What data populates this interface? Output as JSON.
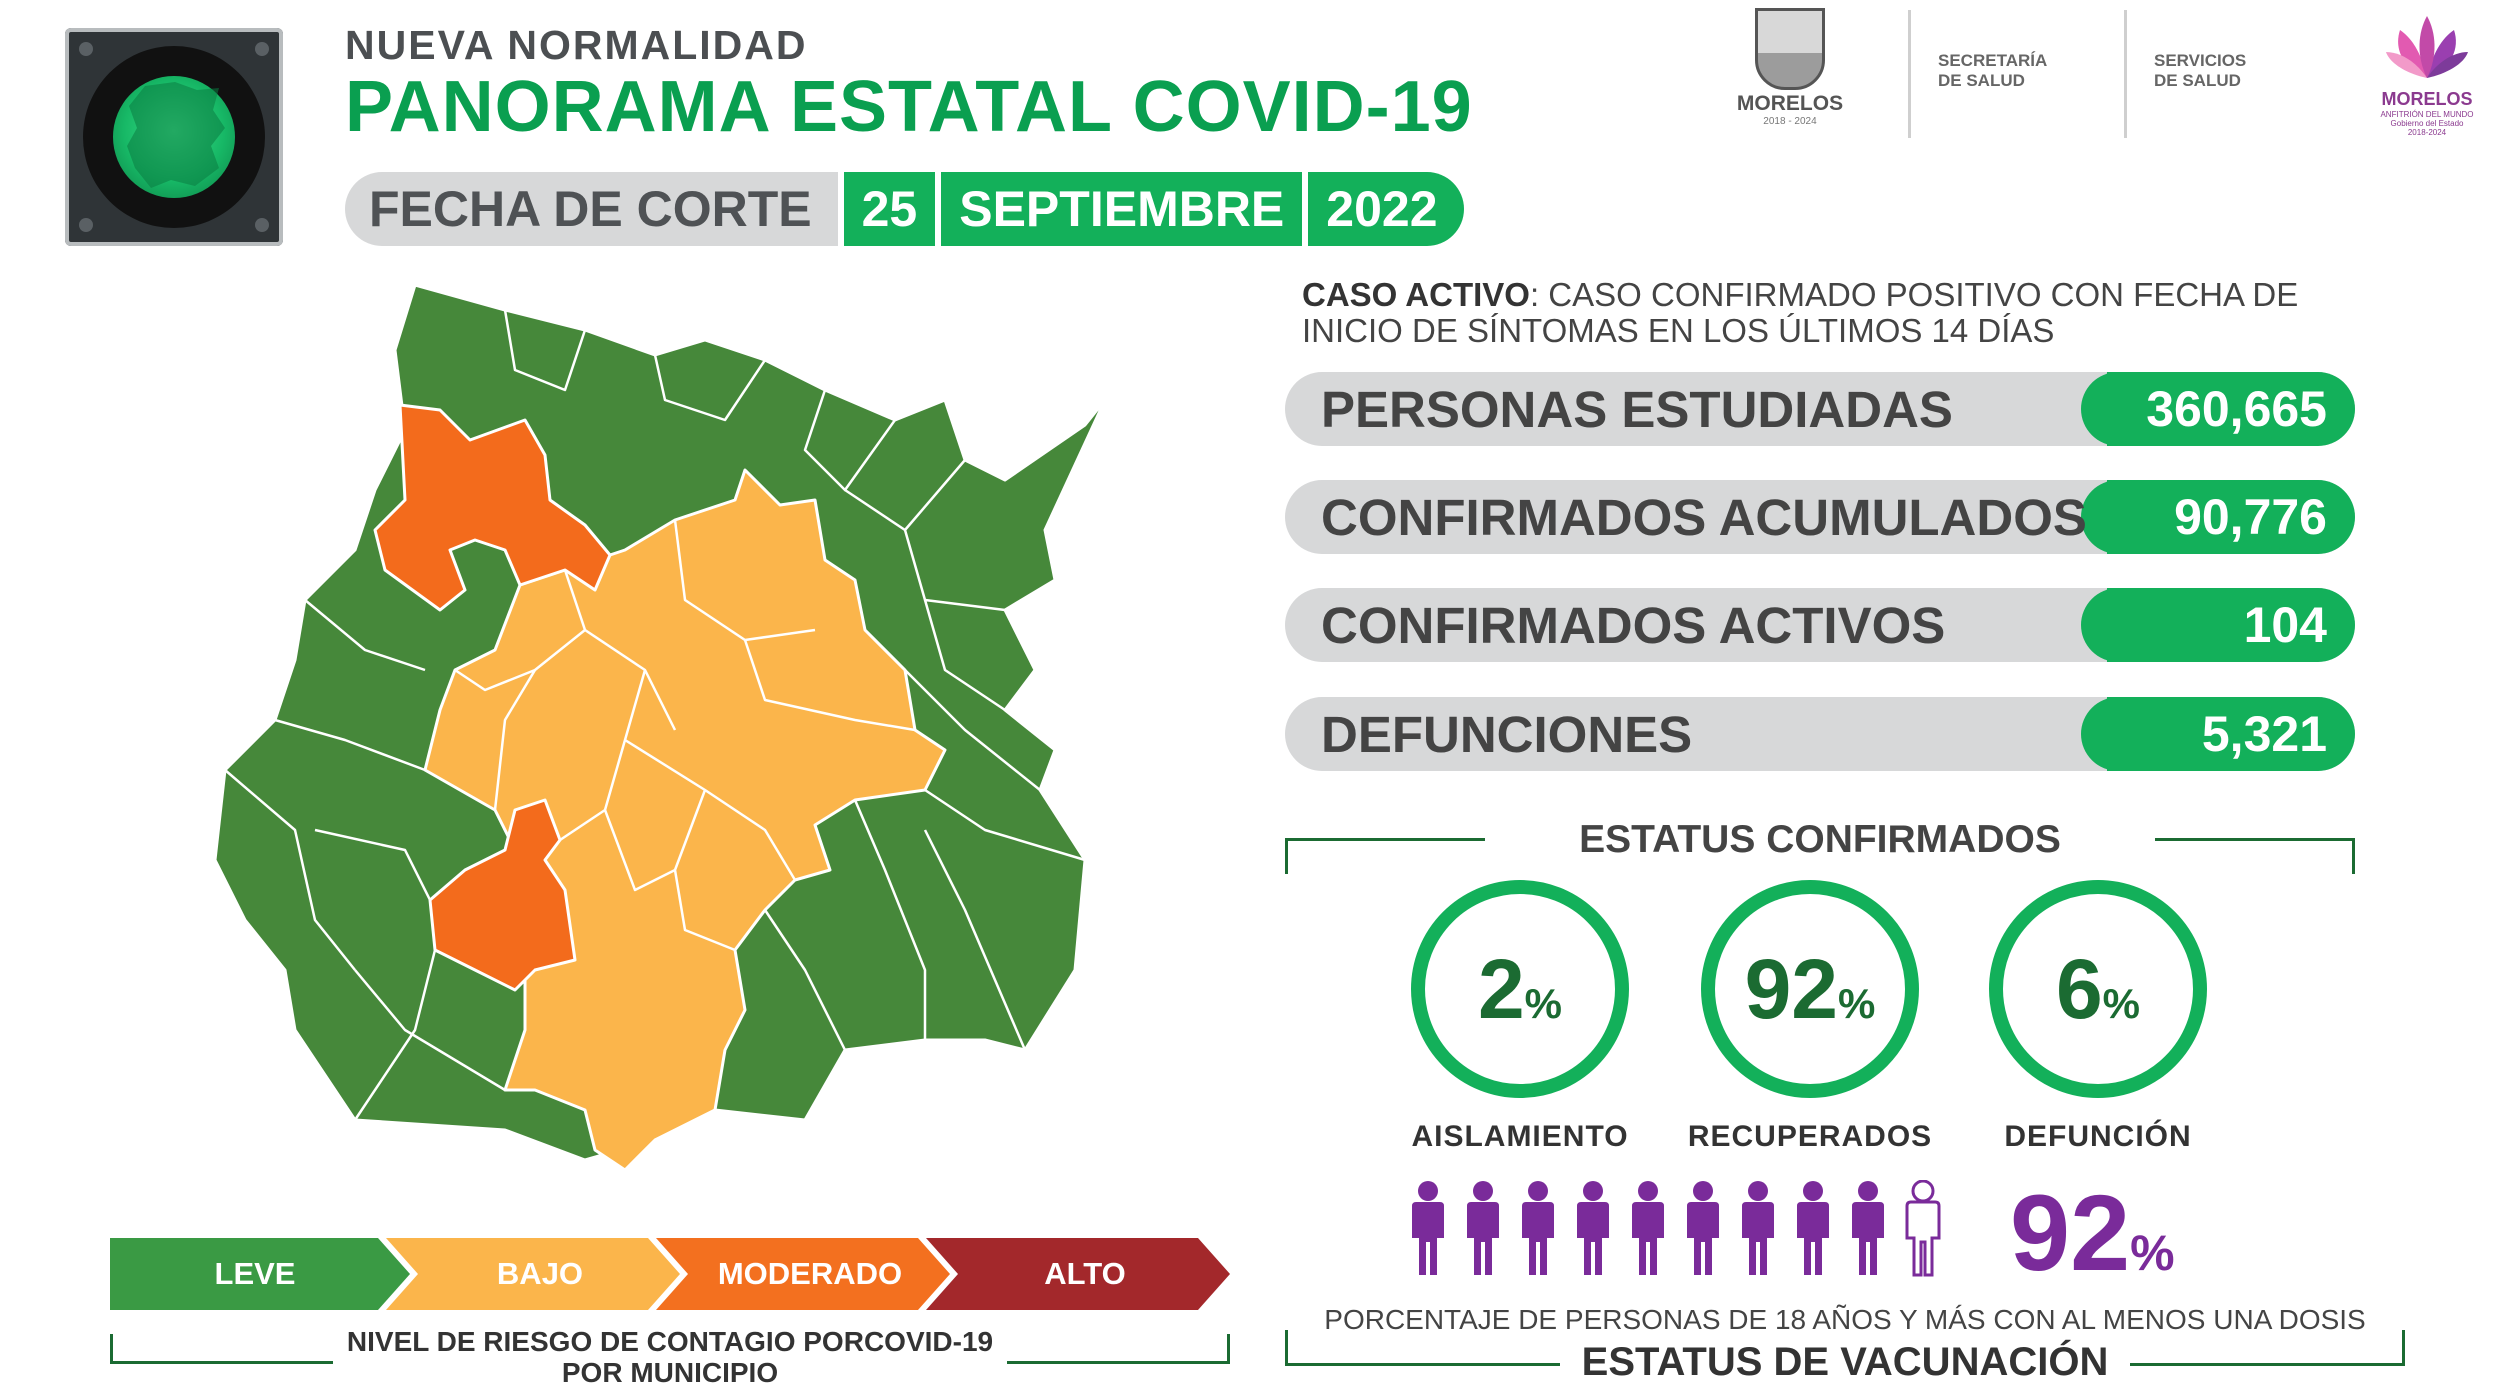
{
  "header": {
    "kicker": "NUEVA  NORMALIDAD",
    "title": "PANORAMA ESTATAL COVID-19",
    "date_label": "FECHA DE CORTE",
    "day": "25",
    "month": "SEPTIEMBRE",
    "year": "2022"
  },
  "logos": {
    "morelos": "MORELOS",
    "morelos_years": "2018 - 2024",
    "secretaria": [
      "SECRETARÍA",
      "DE SALUD"
    ],
    "servicios": [
      "SERVICIOS",
      "DE SALUD"
    ],
    "morelos_flor": "MORELOS",
    "morelos_flor_sub": [
      "ANFITRIÓN DEL MUNDO",
      "Gobierno del Estado",
      "2018-2024"
    ]
  },
  "definition": {
    "term": "CASO ACTIVO",
    "text": ": CASO CONFIRMADO POSITIVO CON FECHA DE INICIO DE SÍNTOMAS EN LOS ÚLTIMOS 14 DÍAS"
  },
  "stats": [
    {
      "label": "PERSONAS ESTUDIADAS",
      "value": "360,665"
    },
    {
      "label": "CONFIRMADOS ACUMULADOS",
      "value": "90,776"
    },
    {
      "label": "CONFIRMADOS ACTIVOS",
      "value": "104"
    },
    {
      "label": "DEFUNCIONES",
      "value": "5,321"
    }
  ],
  "status": {
    "title": "ESTATUS CONFIRMADOS",
    "items": [
      {
        "value": "2",
        "unit": "%",
        "label": "AISLAMIENTO"
      },
      {
        "value": "92",
        "unit": "%",
        "label": "RECUPERADOS"
      },
      {
        "value": "6",
        "unit": "%",
        "label": "DEFUNCIÓN"
      }
    ]
  },
  "vaccination": {
    "value": "92",
    "unit": "%",
    "description": "PORCENTAJE DE PERSONAS DE 18 AÑOS Y MÁS CON AL MENOS UNA DOSIS",
    "title": "ESTATUS DE VACUNACIÓN",
    "filled_people": 9,
    "total_people": 10
  },
  "legend": {
    "levels": [
      {
        "label": "LEVE",
        "color": "#3a9a44"
      },
      {
        "label": "BAJO",
        "color": "#fbb54b"
      },
      {
        "label": "MODERADO",
        "color": "#f3701f"
      },
      {
        "label": "ALTO",
        "color": "#a3282b"
      }
    ],
    "caption_part1": "NIVEL DE RIESGO DE CONTAGIO POR ",
    "caption_bold": "COVID-19",
    "caption_line2": "POR MUNICIPIO"
  },
  "colors": {
    "brand_green": "#0a9f50",
    "value_green": "#13b05a",
    "map_leve": "#46883a",
    "map_bajo": "#fbb54b",
    "map_moderado": "#f36b1c",
    "vaccine_purple": "#7a2b9a"
  }
}
